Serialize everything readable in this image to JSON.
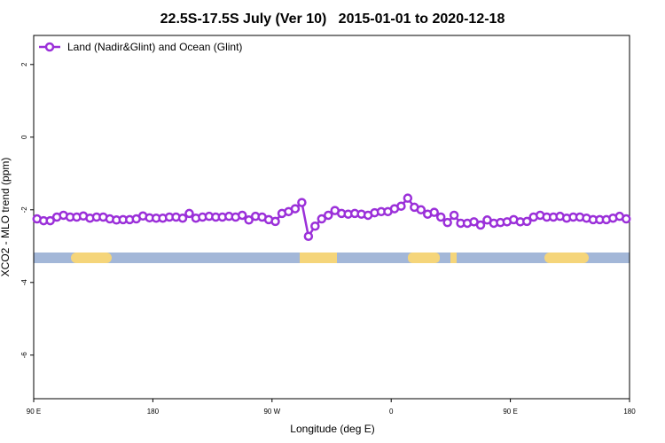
{
  "chart_data": {
    "type": "line",
    "title": "22.5S-17.5S July (Ver 10)   2015-01-01 to 2020-12-18",
    "x_label": "Longitude (deg E)",
    "y_label": "XCO2 - MLO trend (ppm)",
    "x": [
      92.5,
      97.5,
      102.5,
      107.5,
      112.5,
      117.5,
      122.5,
      127.5,
      132.5,
      137.5,
      142.5,
      147.5,
      152.5,
      157.5,
      162.5,
      167.5,
      172.5,
      177.5,
      182.5,
      187.5,
      192.5,
      197.5,
      202.5,
      207.5,
      212.5,
      217.5,
      222.5,
      227.5,
      232.5,
      237.5,
      242.5,
      247.5,
      252.5,
      257.5,
      262.5,
      267.5,
      272.5,
      277.5,
      282.5,
      287.5,
      292.5,
      297.5,
      302.5,
      307.5,
      312.5,
      317.5,
      322.5,
      327.5,
      332.5,
      337.5,
      342.5,
      347.5,
      352.5,
      357.5,
      362.5,
      367.5,
      372.5,
      377.5,
      382.5,
      387.5,
      392.5,
      397.5,
      402.5,
      407.5,
      412.5,
      417.5,
      422.5,
      427.5,
      432.5,
      437.5,
      442.5,
      447.5,
      452.5,
      457.5,
      462.5,
      467.5,
      472.5,
      477.5,
      482.5,
      487.5,
      492.5,
      497.5,
      502.5,
      507.5,
      512.5,
      517.5,
      522.5,
      527.5,
      532.5,
      537.5
    ],
    "series": [
      {
        "name": "Land (Nadir&Glint) and Ocean (Glint)",
        "color": "#9b30d9",
        "values": [
          -2.25,
          -2.3,
          -2.3,
          -2.2,
          -2.15,
          -2.2,
          -2.2,
          -2.17,
          -2.23,
          -2.2,
          -2.2,
          -2.25,
          -2.28,
          -2.27,
          -2.27,
          -2.25,
          -2.17,
          -2.22,
          -2.23,
          -2.23,
          -2.2,
          -2.2,
          -2.23,
          -2.1,
          -2.23,
          -2.2,
          -2.18,
          -2.2,
          -2.2,
          -2.18,
          -2.2,
          -2.15,
          -2.28,
          -2.18,
          -2.2,
          -2.27,
          -2.32,
          -2.1,
          -2.05,
          -1.97,
          -1.8,
          -2.73,
          -2.45,
          -2.25,
          -2.15,
          -2.02,
          -2.1,
          -2.12,
          -2.1,
          -2.12,
          -2.15,
          -2.08,
          -2.05,
          -2.05,
          -1.97,
          -1.9,
          -1.68,
          -1.93,
          -2.0,
          -2.12,
          -2.07,
          -2.2,
          -2.35,
          -2.15,
          -2.37,
          -2.37,
          -2.33,
          -2.42,
          -2.28,
          -2.37,
          -2.35,
          -2.33,
          -2.27,
          -2.33,
          -2.32,
          -2.2,
          -2.15,
          -2.2,
          -2.2,
          -2.18,
          -2.23,
          -2.2,
          -2.2,
          -2.23,
          -2.27,
          -2.27,
          -2.27,
          -2.23,
          -2.18,
          -2.25
        ]
      }
    ],
    "xlim": [
      90,
      540
    ],
    "xticks": [
      {
        "value": 90,
        "label": "90 E"
      },
      180,
      {
        "value": 270,
        "label": "90 W"
      },
      {
        "value": 360,
        "label": "0"
      },
      {
        "value": 450,
        "label": "90 E"
      },
      {
        "value": 540,
        "label": "180"
      }
    ],
    "ylim": [
      -7.2,
      2.8
    ],
    "yticks": [
      2,
      0,
      -2,
      -4,
      -6
    ],
    "legend": "top-left"
  }
}
